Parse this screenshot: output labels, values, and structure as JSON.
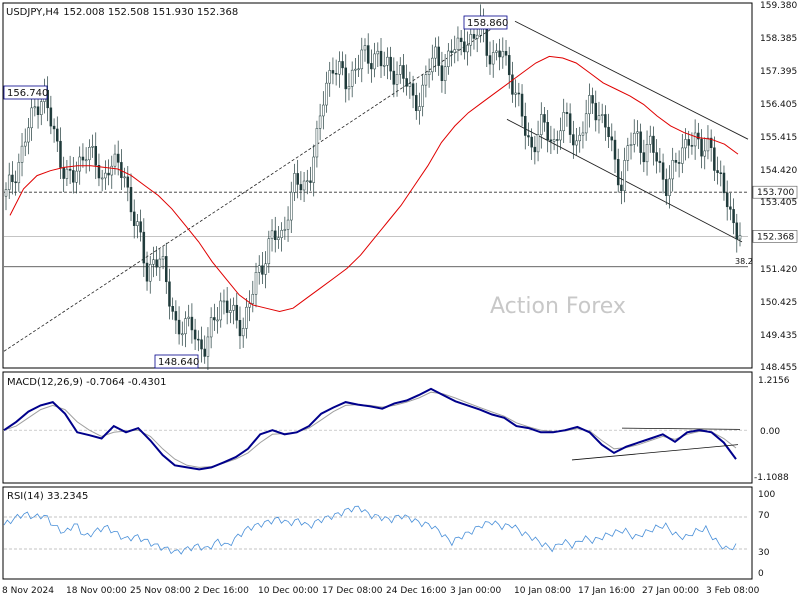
{
  "header": {
    "symbol": "USDJPY,H4",
    "ohlc": "152.008 152.508 151.930 152.368"
  },
  "watermark": "Action Forex",
  "colors": {
    "candle": "#1f3a3a",
    "ma": "#e00000",
    "macd": "#00008b",
    "signal": "#a0a0a0",
    "rsi": "#4a90d9",
    "grid": "#b0b0b0"
  },
  "chart_data": [
    {
      "type": "candlestick",
      "title": "USDJPY,H4",
      "ylim": [
        148.455,
        159.38
      ],
      "yticks": [
        "159.380",
        "158.385",
        "157.395",
        "156.405",
        "155.415",
        "154.420",
        "153.405",
        "152.368",
        "151.420",
        "150.425",
        "149.435",
        "148.455"
      ],
      "xticks": [
        "8 Nov 2024",
        "18 Nov 00:00",
        "25 Nov 08:00",
        "2 Dec 16:00",
        "10 Dec 00:00",
        "17 Dec 08:00",
        "24 Dec 16:00",
        "3 Jan 00:00",
        "10 Jan 08:00",
        "17 Jan 16:00",
        "27 Jan 00:00",
        "3 Feb 08:00"
      ],
      "series_close": [
        153.6,
        154.2,
        154.8,
        155.6,
        156.3,
        156.74,
        155.8,
        155.0,
        154.3,
        154.0,
        154.6,
        155.2,
        154.5,
        154.0,
        154.7,
        154.4,
        154.2,
        153.2,
        152.3,
        151.2,
        151.8,
        151.5,
        150.6,
        149.7,
        149.4,
        149.9,
        149.1,
        148.8,
        150.0,
        150.4,
        150.1,
        149.9,
        149.7,
        150.4,
        151.3,
        151.8,
        152.4,
        152.2,
        153.2,
        154.0,
        153.8,
        154.3,
        155.3,
        156.8,
        157.6,
        157.3,
        156.9,
        157.5,
        157.8,
        157.6,
        158.0,
        157.5,
        157.2,
        157.5,
        157.0,
        156.3,
        156.7,
        157.4,
        157.8,
        157.4,
        157.9,
        158.1,
        158.4,
        158.1,
        158.86,
        158.0,
        157.6,
        158.0,
        157.3,
        156.4,
        155.6,
        155.0,
        155.7,
        155.5,
        155.2,
        155.9,
        155.6,
        155.2,
        155.8,
        156.4,
        156.1,
        155.7,
        154.6,
        154.0,
        155.2,
        155.3,
        155.0,
        155.2,
        154.4,
        154.0,
        154.4,
        154.7,
        155.5,
        155.2,
        154.8,
        155.4,
        154.1,
        153.6,
        152.9,
        152.4
      ],
      "ma_line": [
        153.0,
        153.8,
        154.2,
        154.35,
        154.45,
        154.5,
        154.5,
        154.45,
        154.4,
        154.2,
        153.9,
        153.6,
        153.2,
        152.7,
        152.2,
        151.6,
        151.1,
        150.6,
        150.3,
        150.2,
        150.1,
        150.2,
        150.5,
        150.8,
        151.1,
        151.4,
        151.8,
        152.3,
        152.8,
        153.3,
        153.9,
        154.5,
        155.2,
        155.7,
        156.1,
        156.4,
        156.7,
        157.0,
        157.3,
        157.6,
        157.8,
        157.75,
        157.6,
        157.3,
        157.0,
        156.8,
        156.6,
        156.35,
        156.0,
        155.7,
        155.5,
        155.35,
        155.3,
        155.15,
        154.85
      ],
      "hlines": [
        {
          "label": "153.700",
          "value": 153.7
        },
        {
          "label": "152.368",
          "value": 152.368
        },
        {
          "label": "38.2",
          "value": 151.45
        }
      ],
      "annotations": [
        {
          "text": "156.740",
          "value": 156.74
        },
        {
          "text": "158.860",
          "value": 158.86
        },
        {
          "text": "148.640",
          "value": 148.64
        }
      ],
      "channel": {
        "upper": [
          [
            158.86,
            0
          ],
          [
            155.3,
            1
          ]
        ],
        "lower": [
          [
            155.9,
            0
          ],
          [
            152.2,
            1
          ]
        ]
      }
    },
    {
      "type": "line",
      "title": "MACD(12,26,9) -0.7064 -0.4301",
      "ylim": [
        -1.1088,
        1.2156
      ],
      "yticks": [
        "1.2156",
        "0.00",
        "-1.1088"
      ],
      "macd": [
        0.0,
        0.2,
        0.45,
        0.6,
        0.68,
        0.4,
        -0.05,
        -0.12,
        -0.2,
        0.1,
        -0.05,
        0.05,
        -0.25,
        -0.6,
        -0.85,
        -0.9,
        -0.95,
        -0.9,
        -0.78,
        -0.65,
        -0.45,
        -0.1,
        0.0,
        -0.1,
        -0.05,
        0.1,
        0.4,
        0.55,
        0.68,
        0.62,
        0.58,
        0.52,
        0.65,
        0.72,
        0.85,
        1.0,
        0.85,
        0.7,
        0.6,
        0.5,
        0.38,
        0.3,
        0.1,
        0.05,
        -0.05,
        -0.05,
        0.0,
        0.08,
        -0.05,
        -0.35,
        -0.55,
        -0.4,
        -0.3,
        -0.2,
        -0.1,
        -0.28,
        -0.05,
        0.0,
        -0.05,
        -0.3,
        -0.7
      ],
      "signal": [
        0.0,
        0.1,
        0.3,
        0.5,
        0.6,
        0.5,
        0.2,
        0.0,
        -0.15,
        -0.05,
        -0.02,
        0.0,
        -0.15,
        -0.45,
        -0.7,
        -0.85,
        -0.9,
        -0.88,
        -0.8,
        -0.7,
        -0.55,
        -0.3,
        -0.1,
        -0.08,
        -0.05,
        0.05,
        0.25,
        0.45,
        0.6,
        0.62,
        0.6,
        0.56,
        0.6,
        0.68,
        0.78,
        0.92,
        0.88,
        0.78,
        0.66,
        0.55,
        0.44,
        0.34,
        0.18,
        0.08,
        0.0,
        -0.03,
        -0.02,
        0.04,
        -0.02,
        -0.25,
        -0.45,
        -0.42,
        -0.35,
        -0.25,
        -0.15,
        -0.22,
        -0.1,
        -0.03,
        -0.04,
        -0.2,
        -0.43
      ]
    },
    {
      "type": "line",
      "title": "RSI(14) 33.2345",
      "ylim": [
        0,
        100
      ],
      "yticks": [
        "100",
        "70",
        "30",
        "0"
      ],
      "rsi": [
        60,
        68,
        74,
        70,
        72,
        58,
        50,
        62,
        45,
        52,
        58,
        50,
        42,
        46,
        40,
        34,
        30,
        26,
        30,
        34,
        30,
        40,
        34,
        46,
        56,
        60,
        64,
        68,
        62,
        66,
        58,
        66,
        70,
        74,
        80,
        82,
        72,
        70,
        66,
        72,
        68,
        62,
        60,
        50,
        38,
        46,
        52,
        60,
        64,
        58,
        60,
        50,
        44,
        36,
        30,
        40,
        34,
        44,
        40,
        46,
        50,
        54,
        44,
        50,
        56,
        60,
        48,
        44,
        52,
        56,
        40,
        30,
        33
      ]
    }
  ]
}
